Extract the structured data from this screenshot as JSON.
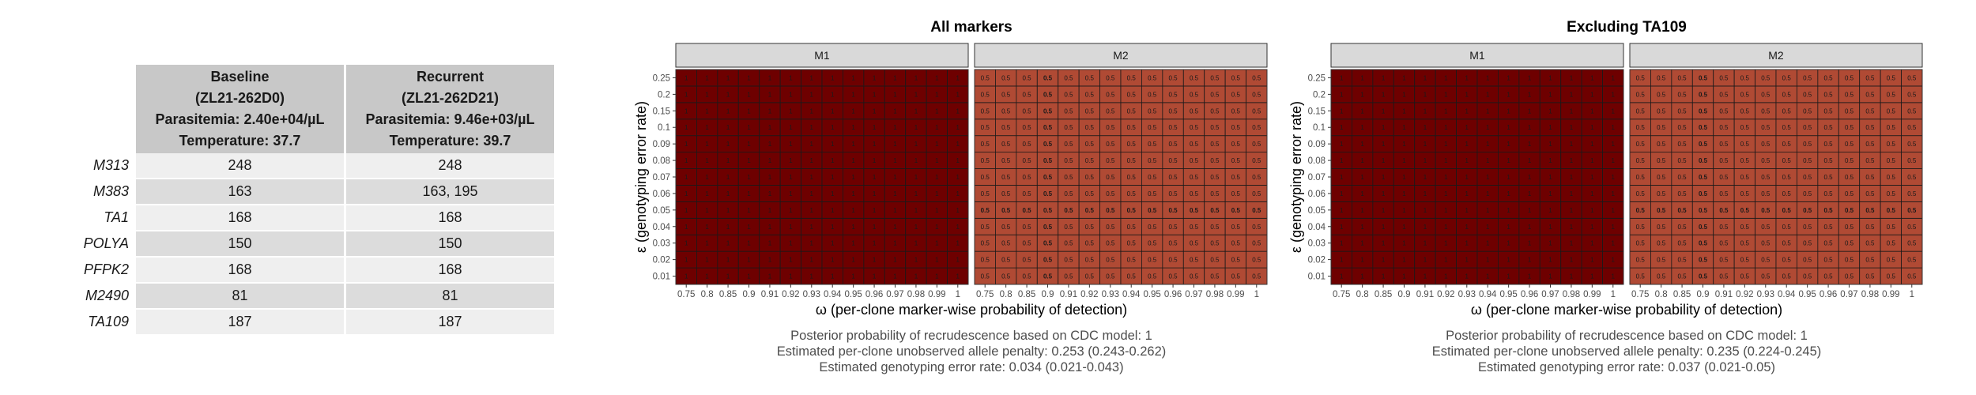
{
  "table": {
    "headers": [
      {
        "lines": [
          "Baseline",
          "(ZL21-262D0)",
          "Parasitemia: 2.40e+04/µL",
          "Temperature: 37.7"
        ]
      },
      {
        "lines": [
          "Recurrent",
          "(ZL21-262D21)",
          "Parasitemia: 9.46e+03/µL",
          "Temperature: 39.7"
        ]
      }
    ],
    "rows": [
      {
        "marker": "M313",
        "baseline": "248",
        "recurrent": "248"
      },
      {
        "marker": "M383",
        "baseline": "163",
        "recurrent": "163, 195"
      },
      {
        "marker": "TA1",
        "baseline": "168",
        "recurrent": "168"
      },
      {
        "marker": "POLYA",
        "baseline": "150",
        "recurrent": "150"
      },
      {
        "marker": "PFPK2",
        "baseline": "168",
        "recurrent": "168"
      },
      {
        "marker": "M2490",
        "baseline": "81",
        "recurrent": "81"
      },
      {
        "marker": "TA109",
        "baseline": "187",
        "recurrent": "187"
      }
    ]
  },
  "colors": {
    "high": "#6e0000",
    "mid": "#b04a34",
    "grid": "#1a1a1a",
    "strip": "#d9d9d9"
  },
  "chart_data": [
    {
      "type": "heatmap",
      "title": "All markers",
      "facets": [
        {
          "label": "M1",
          "value": "1",
          "fill": "high",
          "bold_x": [],
          "bold_y": []
        },
        {
          "label": "M2",
          "value": "0.5",
          "fill": "mid",
          "bold_x": [
            0.9
          ],
          "bold_y": [
            0.05
          ]
        }
      ],
      "x": [
        0.75,
        0.8,
        0.85,
        0.9,
        0.91,
        0.92,
        0.93,
        0.94,
        0.95,
        0.96,
        0.97,
        0.98,
        0.99,
        1
      ],
      "x_tick_labels": [
        "0.75",
        "0.8",
        "0.85",
        "0.9",
        "0.91",
        "0.92",
        "0.93",
        "0.94",
        "0.95",
        "0.96",
        "0.97",
        "0.98",
        "0.99",
        "1"
      ],
      "y": [
        0.01,
        0.02,
        0.03,
        0.04,
        0.05,
        0.06,
        0.07,
        0.08,
        0.09,
        0.1,
        0.15,
        0.2,
        0.25
      ],
      "y_tick_labels": [
        "0.01",
        "0.02",
        "0.03",
        "0.04",
        "0.05",
        "0.06",
        "0.07",
        "0.08",
        "0.09",
        "0.1",
        "0.15",
        "0.2",
        "0.25"
      ],
      "xlabel": "ω (per-clone marker-wise probability of detection)",
      "ylabel": "ε (genotyping error rate)",
      "captions": [
        "Posterior probability of recrudescence based on CDC model: 1",
        "Estimated per-clone unobserved allele penalty: 0.253 (0.243-0.262)",
        "Estimated genotyping error rate: 0.034 (0.021-0.043)"
      ]
    },
    {
      "type": "heatmap",
      "title": "Excluding TA109",
      "facets": [
        {
          "label": "M1",
          "value": "1",
          "fill": "high",
          "bold_x": [],
          "bold_y": []
        },
        {
          "label": "M2",
          "value": "0.5",
          "fill": "mid",
          "bold_x": [
            0.9
          ],
          "bold_y": [
            0.05
          ]
        }
      ],
      "x": [
        0.75,
        0.8,
        0.85,
        0.9,
        0.91,
        0.92,
        0.93,
        0.94,
        0.95,
        0.96,
        0.97,
        0.98,
        0.99,
        1
      ],
      "x_tick_labels": [
        "0.75",
        "0.8",
        "0.85",
        "0.9",
        "0.91",
        "0.92",
        "0.93",
        "0.94",
        "0.95",
        "0.96",
        "0.97",
        "0.98",
        "0.99",
        "1"
      ],
      "y": [
        0.01,
        0.02,
        0.03,
        0.04,
        0.05,
        0.06,
        0.07,
        0.08,
        0.09,
        0.1,
        0.15,
        0.2,
        0.25
      ],
      "y_tick_labels": [
        "0.01",
        "0.02",
        "0.03",
        "0.04",
        "0.05",
        "0.06",
        "0.07",
        "0.08",
        "0.09",
        "0.1",
        "0.15",
        "0.2",
        "0.25"
      ],
      "xlabel": "ω (per-clone marker-wise probability of detection)",
      "ylabel": "ε (genotyping error rate)",
      "captions": [
        "Posterior probability of recrudescence based on CDC model: 1",
        "Estimated per-clone unobserved allele penalty: 0.235 (0.224-0.245)",
        "Estimated genotyping error rate: 0.037 (0.021-0.05)"
      ]
    }
  ]
}
